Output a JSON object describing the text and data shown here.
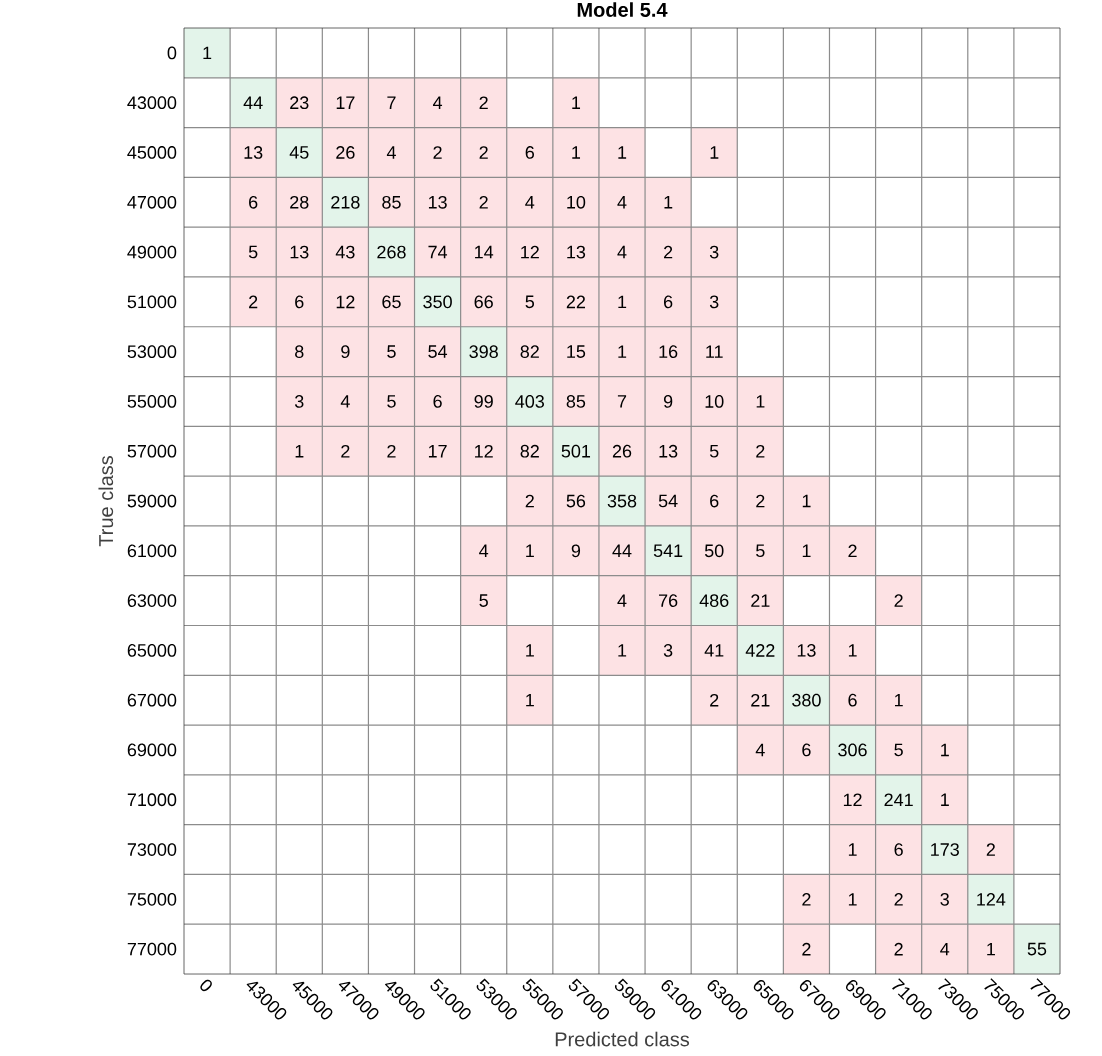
{
  "chart_data": {
    "type": "heatmap",
    "title": "Model 5.4",
    "xlabel": "Predicted class",
    "ylabel": "True class",
    "categories": [
      "0",
      "43000",
      "45000",
      "47000",
      "49000",
      "51000",
      "53000",
      "55000",
      "57000",
      "59000",
      "61000",
      "63000",
      "65000",
      "67000",
      "69000",
      "71000",
      "73000",
      "75000",
      "77000"
    ],
    "y_categories": [
      "0",
      "43000",
      "45000",
      "47000",
      "49000",
      "51000",
      "53000",
      "55000",
      "57000",
      "59000",
      "61000",
      "63000",
      "65000",
      "67000",
      "69000",
      "71000",
      "73000",
      "75000",
      "77000"
    ],
    "cells": [
      [
        1,
        null,
        null,
        null,
        null,
        null,
        null,
        null,
        null,
        null,
        null,
        null,
        null,
        null,
        null,
        null,
        null,
        null,
        null
      ],
      [
        null,
        44,
        23,
        17,
        7,
        4,
        2,
        null,
        1,
        null,
        null,
        null,
        null,
        null,
        null,
        null,
        null,
        null,
        null
      ],
      [
        null,
        13,
        45,
        26,
        4,
        2,
        2,
        6,
        1,
        1,
        null,
        1,
        null,
        null,
        null,
        null,
        null,
        null,
        null
      ],
      [
        null,
        6,
        28,
        218,
        85,
        13,
        2,
        4,
        10,
        4,
        1,
        null,
        null,
        null,
        null,
        null,
        null,
        null,
        null
      ],
      [
        null,
        5,
        13,
        43,
        268,
        74,
        14,
        12,
        13,
        4,
        2,
        3,
        null,
        null,
        null,
        null,
        null,
        null,
        null
      ],
      [
        null,
        2,
        6,
        12,
        65,
        350,
        66,
        5,
        22,
        1,
        6,
        3,
        null,
        null,
        null,
        null,
        null,
        null,
        null
      ],
      [
        null,
        null,
        8,
        9,
        5,
        54,
        398,
        82,
        15,
        1,
        16,
        11,
        null,
        null,
        null,
        null,
        null,
        null,
        null
      ],
      [
        null,
        null,
        3,
        4,
        5,
        6,
        99,
        403,
        85,
        7,
        9,
        10,
        1,
        null,
        null,
        null,
        null,
        null,
        null
      ],
      [
        null,
        null,
        1,
        2,
        2,
        17,
        12,
        82,
        501,
        26,
        13,
        5,
        2,
        null,
        null,
        null,
        null,
        null,
        null
      ],
      [
        null,
        null,
        null,
        null,
        null,
        null,
        null,
        2,
        56,
        358,
        54,
        6,
        2,
        1,
        null,
        null,
        null,
        null,
        null
      ],
      [
        null,
        null,
        null,
        null,
        null,
        null,
        4,
        1,
        9,
        44,
        541,
        50,
        5,
        1,
        2,
        null,
        null,
        null,
        null
      ],
      [
        null,
        null,
        null,
        null,
        null,
        null,
        5,
        null,
        null,
        4,
        76,
        486,
        21,
        null,
        null,
        2,
        null,
        null,
        null
      ],
      [
        null,
        null,
        null,
        null,
        null,
        null,
        null,
        1,
        null,
        1,
        3,
        41,
        422,
        13,
        1,
        null,
        null,
        null,
        null
      ],
      [
        null,
        null,
        null,
        null,
        null,
        null,
        null,
        1,
        null,
        null,
        null,
        2,
        21,
        380,
        6,
        1,
        null,
        null,
        null
      ],
      [
        null,
        null,
        null,
        null,
        null,
        null,
        null,
        null,
        null,
        null,
        null,
        null,
        4,
        6,
        306,
        5,
        1,
        null,
        null
      ],
      [
        null,
        null,
        null,
        null,
        null,
        null,
        null,
        null,
        null,
        null,
        null,
        null,
        null,
        null,
        12,
        241,
        1,
        null,
        null
      ],
      [
        null,
        null,
        null,
        null,
        null,
        null,
        null,
        null,
        null,
        null,
        null,
        null,
        null,
        null,
        1,
        6,
        173,
        2,
        null
      ],
      [
        null,
        null,
        null,
        null,
        null,
        null,
        null,
        null,
        null,
        null,
        null,
        null,
        null,
        2,
        1,
        2,
        3,
        124,
        null
      ],
      [
        null,
        null,
        null,
        null,
        null,
        null,
        null,
        null,
        null,
        null,
        null,
        null,
        null,
        2,
        null,
        2,
        4,
        1,
        55
      ]
    ],
    "colors": [
      "#e3f4ea",
      "#fde2e4"
    ],
    "grid": true,
    "data_labels": true
  }
}
